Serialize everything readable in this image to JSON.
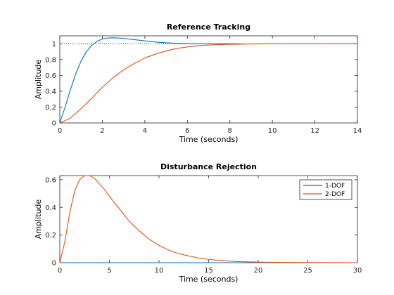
{
  "chart_data": [
    {
      "type": "line",
      "title": "Reference Tracking",
      "xlabel": "Time (seconds)",
      "ylabel": "Amplitude",
      "xlim": [
        0,
        14
      ],
      "ylim": [
        0,
        1.1
      ],
      "xticks": [
        "0",
        "2",
        "4",
        "6",
        "8",
        "10",
        "12",
        "14"
      ],
      "yticks": [
        "0",
        "0.2",
        "0.4",
        "0.6",
        "0.8",
        "1"
      ],
      "reference_line": 1,
      "series": [
        {
          "color": "#0072BD",
          "x": [
            0,
            0.25,
            0.5,
            0.75,
            1.0,
            1.25,
            1.5,
            1.75,
            2.0,
            2.25,
            2.5,
            3.0,
            3.5,
            4.0,
            4.5,
            5.0,
            5.5,
            6.0,
            6.5,
            7.0,
            7.5,
            8.0,
            8.5
          ],
          "y": [
            0,
            0.2,
            0.42,
            0.62,
            0.78,
            0.9,
            0.98,
            1.03,
            1.06,
            1.072,
            1.075,
            1.068,
            1.052,
            1.036,
            1.022,
            1.012,
            1.005,
            1.001,
            0.999,
            0.998,
            0.999,
            1.0,
            1.0
          ]
        },
        {
          "color": "#D95319",
          "x": [
            0,
            0.5,
            1.0,
            1.5,
            2.0,
            2.5,
            3.0,
            3.5,
            4.0,
            4.5,
            5.0,
            5.5,
            6.0,
            6.5,
            7.0,
            8.0,
            9.0,
            10.0,
            11.0,
            12.0,
            13.0,
            14.0
          ],
          "y": [
            0,
            0.06,
            0.18,
            0.31,
            0.45,
            0.57,
            0.67,
            0.75,
            0.82,
            0.87,
            0.91,
            0.94,
            0.96,
            0.975,
            0.984,
            0.993,
            0.997,
            0.999,
            1.0,
            1.0,
            1.0,
            1.0
          ]
        }
      ]
    },
    {
      "type": "line",
      "title": "Disturbance Rejection",
      "xlabel": "Time (seconds)",
      "ylabel": "Amplitude",
      "xlim": [
        0,
        30
      ],
      "ylim": [
        0,
        0.63
      ],
      "xticks": [
        "0",
        "5",
        "10",
        "15",
        "20",
        "25",
        "30"
      ],
      "yticks": [
        "0",
        "0.2",
        "0.4",
        "0.6"
      ],
      "legend": "top-right",
      "series": [
        {
          "name": "1-DOF",
          "color": "#0072BD",
          "x": [
            0,
            30
          ],
          "y": [
            0,
            0
          ]
        },
        {
          "name": "2-DOF",
          "color": "#D95319",
          "x": [
            0,
            0.5,
            1.0,
            1.5,
            2.0,
            2.5,
            3.0,
            3.5,
            4.0,
            4.5,
            5.0,
            6.0,
            7.0,
            8.0,
            9.0,
            10.0,
            11.0,
            12.0,
            14.0,
            16.0,
            18.0,
            20.0,
            22.0,
            25.0,
            30.0
          ],
          "y": [
            0,
            0.15,
            0.36,
            0.52,
            0.6,
            0.63,
            0.63,
            0.61,
            0.57,
            0.53,
            0.48,
            0.39,
            0.3,
            0.23,
            0.17,
            0.125,
            0.09,
            0.065,
            0.033,
            0.016,
            0.008,
            0.004,
            0.002,
            0.001,
            0.0
          ]
        }
      ]
    }
  ]
}
